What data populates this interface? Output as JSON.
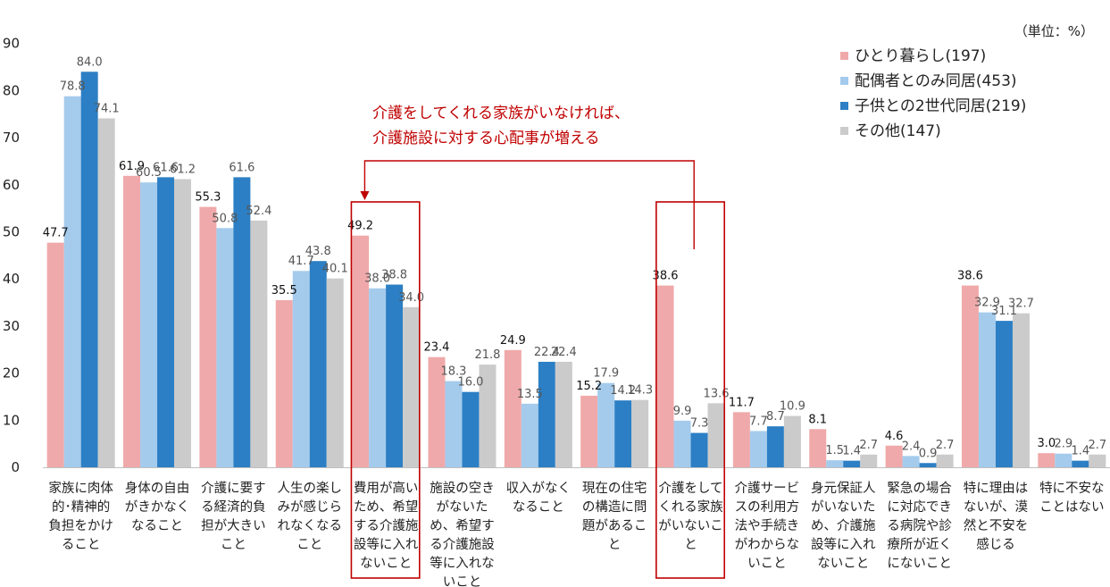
{
  "chart_data": {
    "type": "bar",
    "unit_label": "（単位：%）",
    "ylim": [
      0,
      90
    ],
    "yticks": [
      0,
      10,
      20,
      30,
      40,
      50,
      60,
      70,
      80,
      90
    ],
    "grid": false,
    "legend_position": "top-right",
    "categories": [
      [
        "家族に肉体",
        "的･精神的",
        "負担をかけ",
        "ること"
      ],
      [
        "身体の自由",
        "がきかなく",
        "なること"
      ],
      [
        "介護に要す",
        "る経済的負",
        "担が大きい",
        "こと"
      ],
      [
        "人生の楽し",
        "みが感じら",
        "れなくなる",
        "こと"
      ],
      [
        "費用が高い",
        "ため、希望",
        "する介護施",
        "設等に入れ",
        "ないこと"
      ],
      [
        "施設の空き",
        "がないた",
        "め、希望す",
        "る介護施設",
        "等に入れな",
        "いこと"
      ],
      [
        "収入がなく",
        "なること"
      ],
      [
        "現在の住宅",
        "の構造に問",
        "題があるこ",
        "と"
      ],
      [
        "介護をして",
        "くれる家族",
        "がいないこ",
        "と"
      ],
      [
        "介護サービ",
        "スの利用方",
        "法や手続き",
        "がわからな",
        "いこと"
      ],
      [
        "身元保証人",
        "がいないた",
        "め、介護施",
        "設等に入れ",
        "ないこと"
      ],
      [
        "緊急の場合",
        "に対応でき",
        "る病院や診",
        "療所が近く",
        "にないこと"
      ],
      [
        "特に理由は",
        "ないが、漠",
        "然と不安を",
        "感じる"
      ],
      [
        "特に不安な",
        "ことはない"
      ]
    ],
    "series": [
      {
        "name": "ひとり暮らし(197)",
        "color": "#f0a9aa",
        "values": [
          47.7,
          61.9,
          55.3,
          35.5,
          49.2,
          23.4,
          24.9,
          15.2,
          38.6,
          11.7,
          8.1,
          4.6,
          38.6,
          3.0
        ]
      },
      {
        "name": "配偶者とのみ同居(453)",
        "color": "#a4cbec",
        "values": [
          78.8,
          60.5,
          50.8,
          41.7,
          38.0,
          18.3,
          13.5,
          17.9,
          9.9,
          7.7,
          1.5,
          2.4,
          32.9,
          2.9
        ]
      },
      {
        "name": "子供との2世代同居(219)",
        "color": "#2c7fc4",
        "values": [
          84.0,
          61.6,
          61.6,
          43.8,
          38.8,
          16.0,
          22.4,
          14.2,
          7.3,
          8.7,
          1.4,
          0.9,
          31.1,
          1.4
        ]
      },
      {
        "name": "その他(147)",
        "color": "#cbcbcb",
        "values": [
          74.1,
          61.2,
          52.4,
          40.1,
          34.0,
          21.8,
          22.4,
          14.3,
          13.6,
          10.9,
          2.7,
          2.7,
          32.7,
          2.7
        ]
      }
    ],
    "annotation": {
      "lines": [
        "介護をしてくれる家族がいなければ、",
        "介護施設に対する心配事が増える"
      ],
      "color": "#c00000",
      "highlighted_categories": [
        4,
        8
      ]
    }
  }
}
